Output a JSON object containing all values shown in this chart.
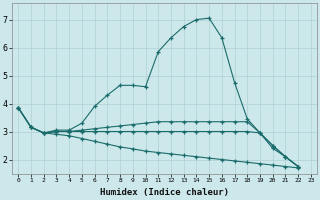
{
  "xlabel": "Humidex (Indice chaleur)",
  "bg_color": "#cde8eb",
  "grid_color": "#b0d0d4",
  "line_color": "#1a6b6b",
  "xlim": [
    -0.5,
    23.5
  ],
  "ylim": [
    1.5,
    7.6
  ],
  "xticks": [
    0,
    1,
    2,
    3,
    4,
    5,
    6,
    7,
    8,
    9,
    10,
    11,
    12,
    13,
    14,
    15,
    16,
    17,
    18,
    19,
    20,
    21,
    22,
    23
  ],
  "yticks": [
    2,
    3,
    4,
    5,
    6,
    7
  ],
  "series": [
    [
      3.85,
      3.15,
      2.95,
      3.05,
      3.05,
      3.3,
      3.9,
      4.3,
      4.65,
      4.65,
      4.6,
      5.85,
      6.35,
      6.75,
      7.0,
      7.05,
      6.35,
      4.75,
      3.45,
      2.95,
      2.4,
      2.1,
      1.75
    ],
    [
      3.85,
      3.15,
      2.95,
      3.0,
      3.0,
      3.05,
      3.1,
      3.15,
      3.2,
      3.25,
      3.3,
      3.35,
      3.35,
      3.35,
      3.35,
      3.35,
      3.35,
      3.35,
      3.35,
      2.95,
      2.5,
      2.1,
      1.75
    ],
    [
      3.85,
      3.15,
      2.95,
      3.0,
      3.0,
      3.0,
      3.0,
      3.0,
      3.0,
      3.0,
      3.0,
      3.0,
      3.0,
      3.0,
      3.0,
      3.0,
      3.0,
      3.0,
      3.0,
      2.95,
      2.5,
      2.1,
      1.75
    ],
    [
      3.85,
      3.15,
      2.95,
      2.9,
      2.85,
      2.75,
      2.65,
      2.55,
      2.45,
      2.38,
      2.3,
      2.25,
      2.2,
      2.15,
      2.1,
      2.05,
      2.0,
      1.95,
      1.9,
      1.85,
      1.8,
      1.75,
      1.7
    ]
  ]
}
